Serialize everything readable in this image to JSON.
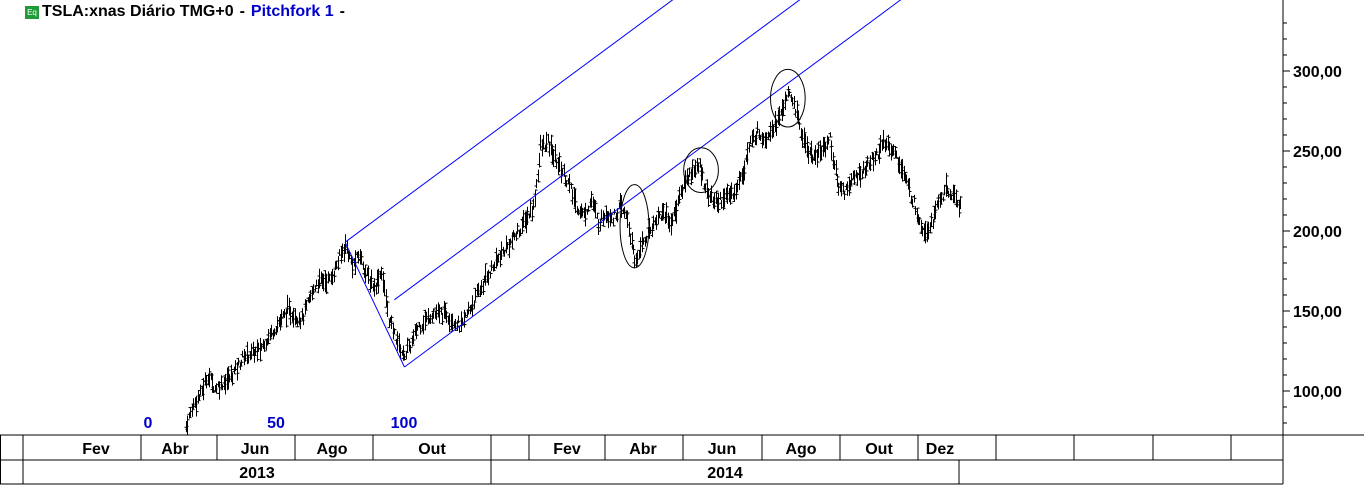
{
  "header": {
    "eq_icon": "Eq",
    "symbol": "TSLA:xnas Diário TMG+0",
    "sep1": "-",
    "study": "Pitchfork 1",
    "sep2": "-"
  },
  "colors": {
    "pitchfork": "#0000ff",
    "bars": "#000000",
    "grid": "#000000",
    "labels_blue": "#0000cc"
  },
  "chart_data": {
    "type": "ohlc",
    "y_ticks": [
      "100,00",
      "150,00",
      "200,00",
      "250,00",
      "300,00"
    ],
    "y_tick_values": [
      100,
      150,
      200,
      250,
      300
    ],
    "ylim": [
      72,
      340
    ],
    "month_labels": [
      "Fev",
      "Abr",
      "Jun",
      "Ago",
      "Out",
      "Fev",
      "Abr",
      "Jun",
      "Ago",
      "Out",
      "Dez"
    ],
    "year_labels": [
      "2013",
      "2014"
    ],
    "bar_count_labels": [
      "0",
      "50",
      "100"
    ],
    "price_path": [
      {
        "t": 0,
        "p": 78
      },
      {
        "t": 5,
        "p": 92
      },
      {
        "t": 10,
        "p": 98
      },
      {
        "t": 15,
        "p": 110
      },
      {
        "t": 20,
        "p": 102
      },
      {
        "t": 30,
        "p": 108
      },
      {
        "t": 40,
        "p": 122
      },
      {
        "t": 50,
        "p": 125
      },
      {
        "t": 60,
        "p": 138
      },
      {
        "t": 70,
        "p": 150
      },
      {
        "t": 80,
        "p": 145
      },
      {
        "t": 90,
        "p": 168
      },
      {
        "t": 100,
        "p": 170
      },
      {
        "t": 110,
        "p": 192
      },
      {
        "t": 115,
        "p": 178
      },
      {
        "t": 120,
        "p": 185
      },
      {
        "t": 125,
        "p": 172
      },
      {
        "t": 130,
        "p": 165
      },
      {
        "t": 135,
        "p": 175
      },
      {
        "t": 140,
        "p": 145
      },
      {
        "t": 150,
        "p": 122
      },
      {
        "t": 155,
        "p": 128
      },
      {
        "t": 160,
        "p": 140
      },
      {
        "t": 170,
        "p": 148
      },
      {
        "t": 180,
        "p": 148
      },
      {
        "t": 190,
        "p": 140
      },
      {
        "t": 195,
        "p": 150
      },
      {
        "t": 200,
        "p": 158
      },
      {
        "t": 210,
        "p": 175
      },
      {
        "t": 220,
        "p": 188
      },
      {
        "t": 230,
        "p": 200
      },
      {
        "t": 240,
        "p": 215
      },
      {
        "t": 245,
        "p": 252
      },
      {
        "t": 250,
        "p": 255
      },
      {
        "t": 255,
        "p": 245
      },
      {
        "t": 260,
        "p": 238
      },
      {
        "t": 265,
        "p": 228
      },
      {
        "t": 270,
        "p": 215
      },
      {
        "t": 275,
        "p": 210
      },
      {
        "t": 280,
        "p": 220
      },
      {
        "t": 285,
        "p": 205
      },
      {
        "t": 290,
        "p": 212
      },
      {
        "t": 295,
        "p": 208
      },
      {
        "t": 300,
        "p": 215
      },
      {
        "t": 305,
        "p": 208
      },
      {
        "t": 310,
        "p": 180
      },
      {
        "t": 315,
        "p": 192
      },
      {
        "t": 320,
        "p": 200
      },
      {
        "t": 325,
        "p": 208
      },
      {
        "t": 330,
        "p": 212
      },
      {
        "t": 335,
        "p": 205
      },
      {
        "t": 340,
        "p": 218
      },
      {
        "t": 345,
        "p": 232
      },
      {
        "t": 350,
        "p": 238
      },
      {
        "t": 355,
        "p": 240
      },
      {
        "t": 360,
        "p": 225
      },
      {
        "t": 365,
        "p": 218
      },
      {
        "t": 370,
        "p": 220
      },
      {
        "t": 375,
        "p": 222
      },
      {
        "t": 380,
        "p": 226
      },
      {
        "t": 385,
        "p": 238
      },
      {
        "t": 390,
        "p": 255
      },
      {
        "t": 395,
        "p": 262
      },
      {
        "t": 400,
        "p": 258
      },
      {
        "t": 405,
        "p": 265
      },
      {
        "t": 410,
        "p": 270
      },
      {
        "t": 415,
        "p": 285
      },
      {
        "t": 420,
        "p": 280
      },
      {
        "t": 425,
        "p": 262
      },
      {
        "t": 430,
        "p": 250
      },
      {
        "t": 435,
        "p": 245
      },
      {
        "t": 440,
        "p": 252
      },
      {
        "t": 445,
        "p": 258
      },
      {
        "t": 450,
        "p": 230
      },
      {
        "t": 455,
        "p": 225
      },
      {
        "t": 460,
        "p": 232
      },
      {
        "t": 465,
        "p": 235
      },
      {
        "t": 470,
        "p": 240
      },
      {
        "t": 475,
        "p": 245
      },
      {
        "t": 480,
        "p": 252
      },
      {
        "t": 485,
        "p": 255
      },
      {
        "t": 490,
        "p": 248
      },
      {
        "t": 495,
        "p": 238
      },
      {
        "t": 500,
        "p": 225
      },
      {
        "t": 505,
        "p": 212
      },
      {
        "t": 510,
        "p": 200
      },
      {
        "t": 515,
        "p": 205
      },
      {
        "t": 520,
        "p": 218
      },
      {
        "t": 525,
        "p": 225
      },
      {
        "t": 530,
        "p": 222
      },
      {
        "t": 535,
        "p": 216
      }
    ],
    "pitchfork": {
      "pivots": [
        {
          "t": 110,
          "p": 193
        },
        {
          "t": 151,
          "p": 115
        },
        {
          "t": 144,
          "p": 157
        }
      ]
    },
    "highlights": [
      {
        "t": 310,
        "p": 203,
        "t_radius": 10,
        "p_radius": 26
      },
      {
        "t": 356,
        "p": 238,
        "t_radius": 12,
        "p_radius": 14
      },
      {
        "t": 416,
        "p": 283,
        "t_radius": 12,
        "p_radius": 18
      }
    ]
  }
}
